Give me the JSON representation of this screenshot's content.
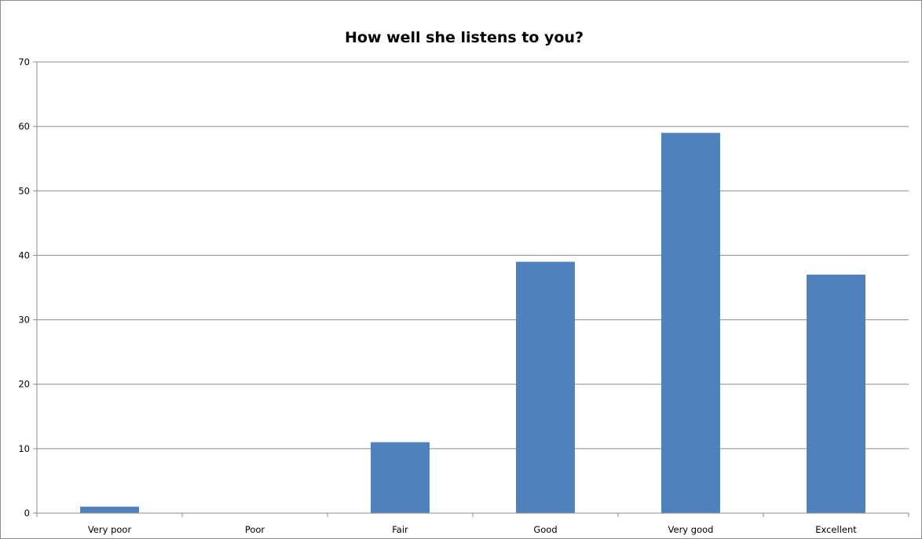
{
  "chart_data": {
    "type": "bar",
    "title": "How well she listens to you?",
    "categories": [
      "Very poor",
      "Poor",
      "Fair",
      "Good",
      "Very good",
      "Excellent"
    ],
    "values": [
      1,
      0,
      11,
      39,
      59,
      37
    ],
    "ylim": [
      0,
      70
    ],
    "yticks": [
      "0",
      "10",
      "20",
      "30",
      "40",
      "50",
      "60",
      "70"
    ],
    "xlabel": "",
    "ylabel": "",
    "grid": true,
    "legend": "none",
    "bar_color": "#4f81bd",
    "grid_color": "#8c8c8c"
  }
}
